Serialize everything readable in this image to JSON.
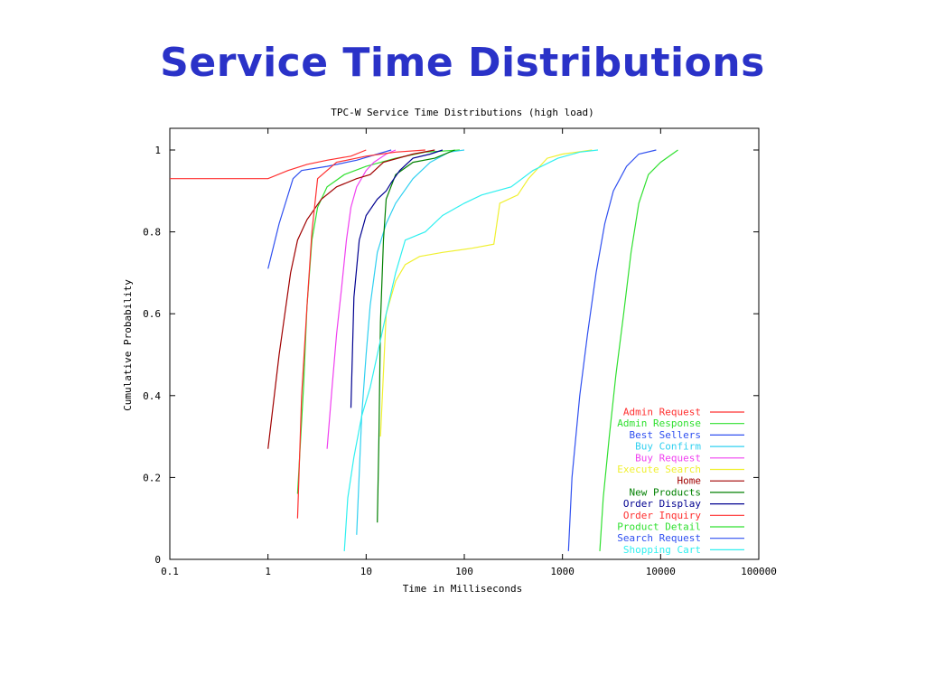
{
  "slide": {
    "title": "Service Time Distributions"
  },
  "chart_data": {
    "type": "line",
    "title": "TPC-W Service Time Distributions (high load)",
    "xlabel": "Time in Milliseconds",
    "ylabel": "Cumulative Probability",
    "xscale": "log",
    "xlim": [
      0.1,
      100000
    ],
    "ylim": [
      0,
      1
    ],
    "xticks": [
      0.1,
      1,
      10,
      100,
      1000,
      10000,
      100000
    ],
    "xtick_labels": [
      "0.1",
      "1",
      "10",
      "100",
      "1000",
      "10000",
      "100000"
    ],
    "yticks": [
      0,
      0.2,
      0.4,
      0.6,
      0.8,
      1
    ],
    "ytick_labels": [
      "0",
      "0.2",
      "0.4",
      "0.6",
      "0.8",
      "1"
    ],
    "grid": false,
    "legend": "bottom-right",
    "series": [
      {
        "name": "Admin Request",
        "color": "#ff3030",
        "points": [
          [
            0.1,
            0.93
          ],
          [
            0.5,
            0.93
          ],
          [
            1,
            0.93
          ],
          [
            1.6,
            0.95
          ],
          [
            2.5,
            0.965
          ],
          [
            4,
            0.975
          ],
          [
            7,
            0.985
          ],
          [
            10,
            1.0
          ]
        ]
      },
      {
        "name": "Admin Response",
        "color": "#30e030",
        "points": [
          [
            2,
            0.16
          ],
          [
            2.3,
            0.42
          ],
          [
            2.5,
            0.62
          ],
          [
            2.8,
            0.78
          ],
          [
            3.2,
            0.86
          ],
          [
            4,
            0.91
          ],
          [
            6,
            0.94
          ],
          [
            10,
            0.96
          ],
          [
            20,
            0.98
          ],
          [
            40,
            0.995
          ],
          [
            90,
            1.0
          ]
        ]
      },
      {
        "name": "Best Sellers",
        "color": "#3050f0",
        "points": [
          [
            1,
            0.71
          ],
          [
            1.3,
            0.82
          ],
          [
            1.8,
            0.93
          ],
          [
            2.2,
            0.95
          ],
          [
            4,
            0.96
          ],
          [
            8,
            0.975
          ],
          [
            13,
            0.99
          ],
          [
            18,
            1.0
          ]
        ]
      },
      {
        "name": "Buy Confirm",
        "color": "#30d0f0",
        "points": [
          [
            8,
            0.06
          ],
          [
            9,
            0.35
          ],
          [
            10,
            0.5
          ],
          [
            11,
            0.62
          ],
          [
            13,
            0.75
          ],
          [
            16,
            0.82
          ],
          [
            20,
            0.87
          ],
          [
            30,
            0.93
          ],
          [
            45,
            0.97
          ],
          [
            70,
            0.995
          ],
          [
            100,
            1.0
          ]
        ]
      },
      {
        "name": "Buy Request",
        "color": "#f040f0",
        "points": [
          [
            4,
            0.27
          ],
          [
            4.5,
            0.42
          ],
          [
            5,
            0.55
          ],
          [
            5.6,
            0.66
          ],
          [
            6.3,
            0.78
          ],
          [
            7,
            0.86
          ],
          [
            8,
            0.91
          ],
          [
            10,
            0.95
          ],
          [
            12,
            0.97
          ],
          [
            16,
            0.99
          ],
          [
            20,
            1.0
          ]
        ]
      },
      {
        "name": "Execute Search",
        "color": "#f0f030",
        "points": [
          [
            14,
            0.3
          ],
          [
            16,
            0.6
          ],
          [
            20,
            0.68
          ],
          [
            25,
            0.72
          ],
          [
            35,
            0.74
          ],
          [
            60,
            0.75
          ],
          [
            120,
            0.76
          ],
          [
            200,
            0.77
          ],
          [
            230,
            0.87
          ],
          [
            350,
            0.89
          ],
          [
            450,
            0.93
          ],
          [
            700,
            0.98
          ],
          [
            1000,
            0.99
          ],
          [
            2000,
            1.0
          ]
        ]
      },
      {
        "name": "Home",
        "color": "#a00000",
        "points": [
          [
            1,
            0.27
          ],
          [
            1.3,
            0.5
          ],
          [
            1.7,
            0.7
          ],
          [
            2,
            0.78
          ],
          [
            2.5,
            0.83
          ],
          [
            3.5,
            0.88
          ],
          [
            5,
            0.91
          ],
          [
            8,
            0.93
          ],
          [
            11,
            0.94
          ],
          [
            15,
            0.97
          ],
          [
            30,
            0.99
          ],
          [
            50,
            1.0
          ]
        ]
      },
      {
        "name": "New Products",
        "color": "#008000",
        "points": [
          [
            13,
            0.09
          ],
          [
            13.5,
            0.3
          ],
          [
            14,
            0.58
          ],
          [
            15,
            0.78
          ],
          [
            16,
            0.88
          ],
          [
            20,
            0.94
          ],
          [
            30,
            0.97
          ],
          [
            50,
            0.98
          ],
          [
            80,
            1.0
          ]
        ]
      },
      {
        "name": "Order Display",
        "color": "#000090",
        "points": [
          [
            7,
            0.37
          ],
          [
            7.5,
            0.64
          ],
          [
            8.5,
            0.78
          ],
          [
            10,
            0.84
          ],
          [
            13,
            0.88
          ],
          [
            16,
            0.9
          ],
          [
            18,
            0.92
          ],
          [
            22,
            0.95
          ],
          [
            30,
            0.98
          ],
          [
            45,
            0.99
          ],
          [
            60,
            1.0
          ]
        ]
      },
      {
        "name": "Order Inquiry",
        "color": "#ff3030",
        "points": [
          [
            2,
            0.1
          ],
          [
            2.2,
            0.4
          ],
          [
            2.5,
            0.62
          ],
          [
            2.8,
            0.8
          ],
          [
            3.2,
            0.93
          ],
          [
            5,
            0.97
          ],
          [
            10,
            0.985
          ],
          [
            20,
            0.995
          ],
          [
            40,
            1.0
          ]
        ]
      },
      {
        "name": "Product Detail",
        "color": "#30e030",
        "points": [
          [
            2400,
            0.02
          ],
          [
            2600,
            0.15
          ],
          [
            3000,
            0.3
          ],
          [
            3500,
            0.45
          ],
          [
            4200,
            0.6
          ],
          [
            5000,
            0.75
          ],
          [
            6000,
            0.87
          ],
          [
            7500,
            0.94
          ],
          [
            10000,
            0.97
          ],
          [
            15000,
            1.0
          ]
        ]
      },
      {
        "name": "Search Request",
        "color": "#3050f0",
        "points": [
          [
            1150,
            0.02
          ],
          [
            1250,
            0.2
          ],
          [
            1500,
            0.4
          ],
          [
            1800,
            0.55
          ],
          [
            2200,
            0.7
          ],
          [
            2700,
            0.82
          ],
          [
            3300,
            0.9
          ],
          [
            4500,
            0.96
          ],
          [
            6000,
            0.99
          ],
          [
            9000,
            1.0
          ]
        ]
      },
      {
        "name": "Shopping Cart",
        "color": "#30f0f0",
        "points": [
          [
            6,
            0.02
          ],
          [
            6.5,
            0.15
          ],
          [
            7.5,
            0.25
          ],
          [
            9,
            0.35
          ],
          [
            11,
            0.42
          ],
          [
            13,
            0.5
          ],
          [
            16,
            0.6
          ],
          [
            20,
            0.7
          ],
          [
            25,
            0.78
          ],
          [
            40,
            0.8
          ],
          [
            60,
            0.84
          ],
          [
            100,
            0.87
          ],
          [
            150,
            0.89
          ],
          [
            300,
            0.91
          ],
          [
            500,
            0.95
          ],
          [
            900,
            0.98
          ],
          [
            1500,
            0.995
          ],
          [
            2300,
            1.0
          ]
        ]
      }
    ]
  }
}
